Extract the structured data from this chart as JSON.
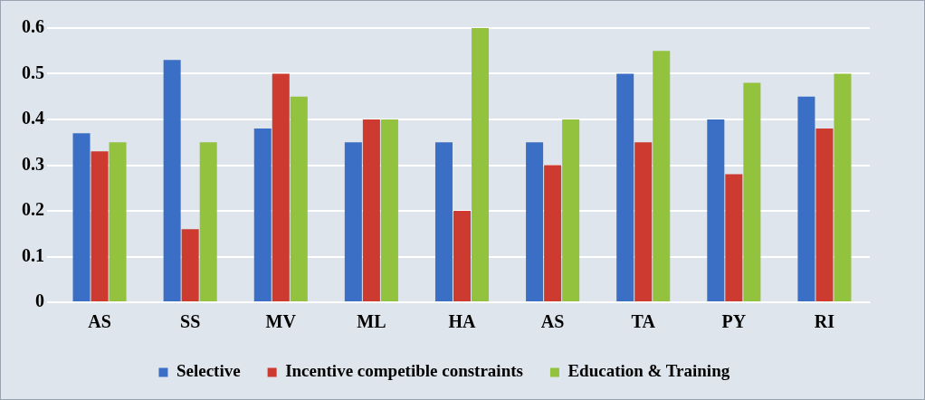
{
  "chart_data": {
    "type": "bar",
    "categories": [
      "AS",
      "SS",
      "MV",
      "ML",
      "HA",
      "AS",
      "TA",
      "PY",
      "RI"
    ],
    "series": [
      {
        "name": "Selective",
        "color": "#3b6fc6",
        "values": [
          0.37,
          0.53,
          0.38,
          0.35,
          0.35,
          0.35,
          0.5,
          0.4,
          0.45
        ]
      },
      {
        "name": "Incentive competible constraints",
        "color": "#cc3a30",
        "values": [
          0.33,
          0.16,
          0.5,
          0.4,
          0.2,
          0.3,
          0.35,
          0.28,
          0.38
        ]
      },
      {
        "name": "Education & Training",
        "color": "#92c23e",
        "values": [
          0.35,
          0.35,
          0.45,
          0.4,
          0.6,
          0.4,
          0.55,
          0.48,
          0.5
        ]
      }
    ],
    "ylim": [
      0,
      0.6
    ],
    "yticks": [
      0,
      0.1,
      0.2,
      0.3,
      0.4,
      0.5,
      0.6
    ],
    "grid": "y",
    "legend": "bottom"
  }
}
